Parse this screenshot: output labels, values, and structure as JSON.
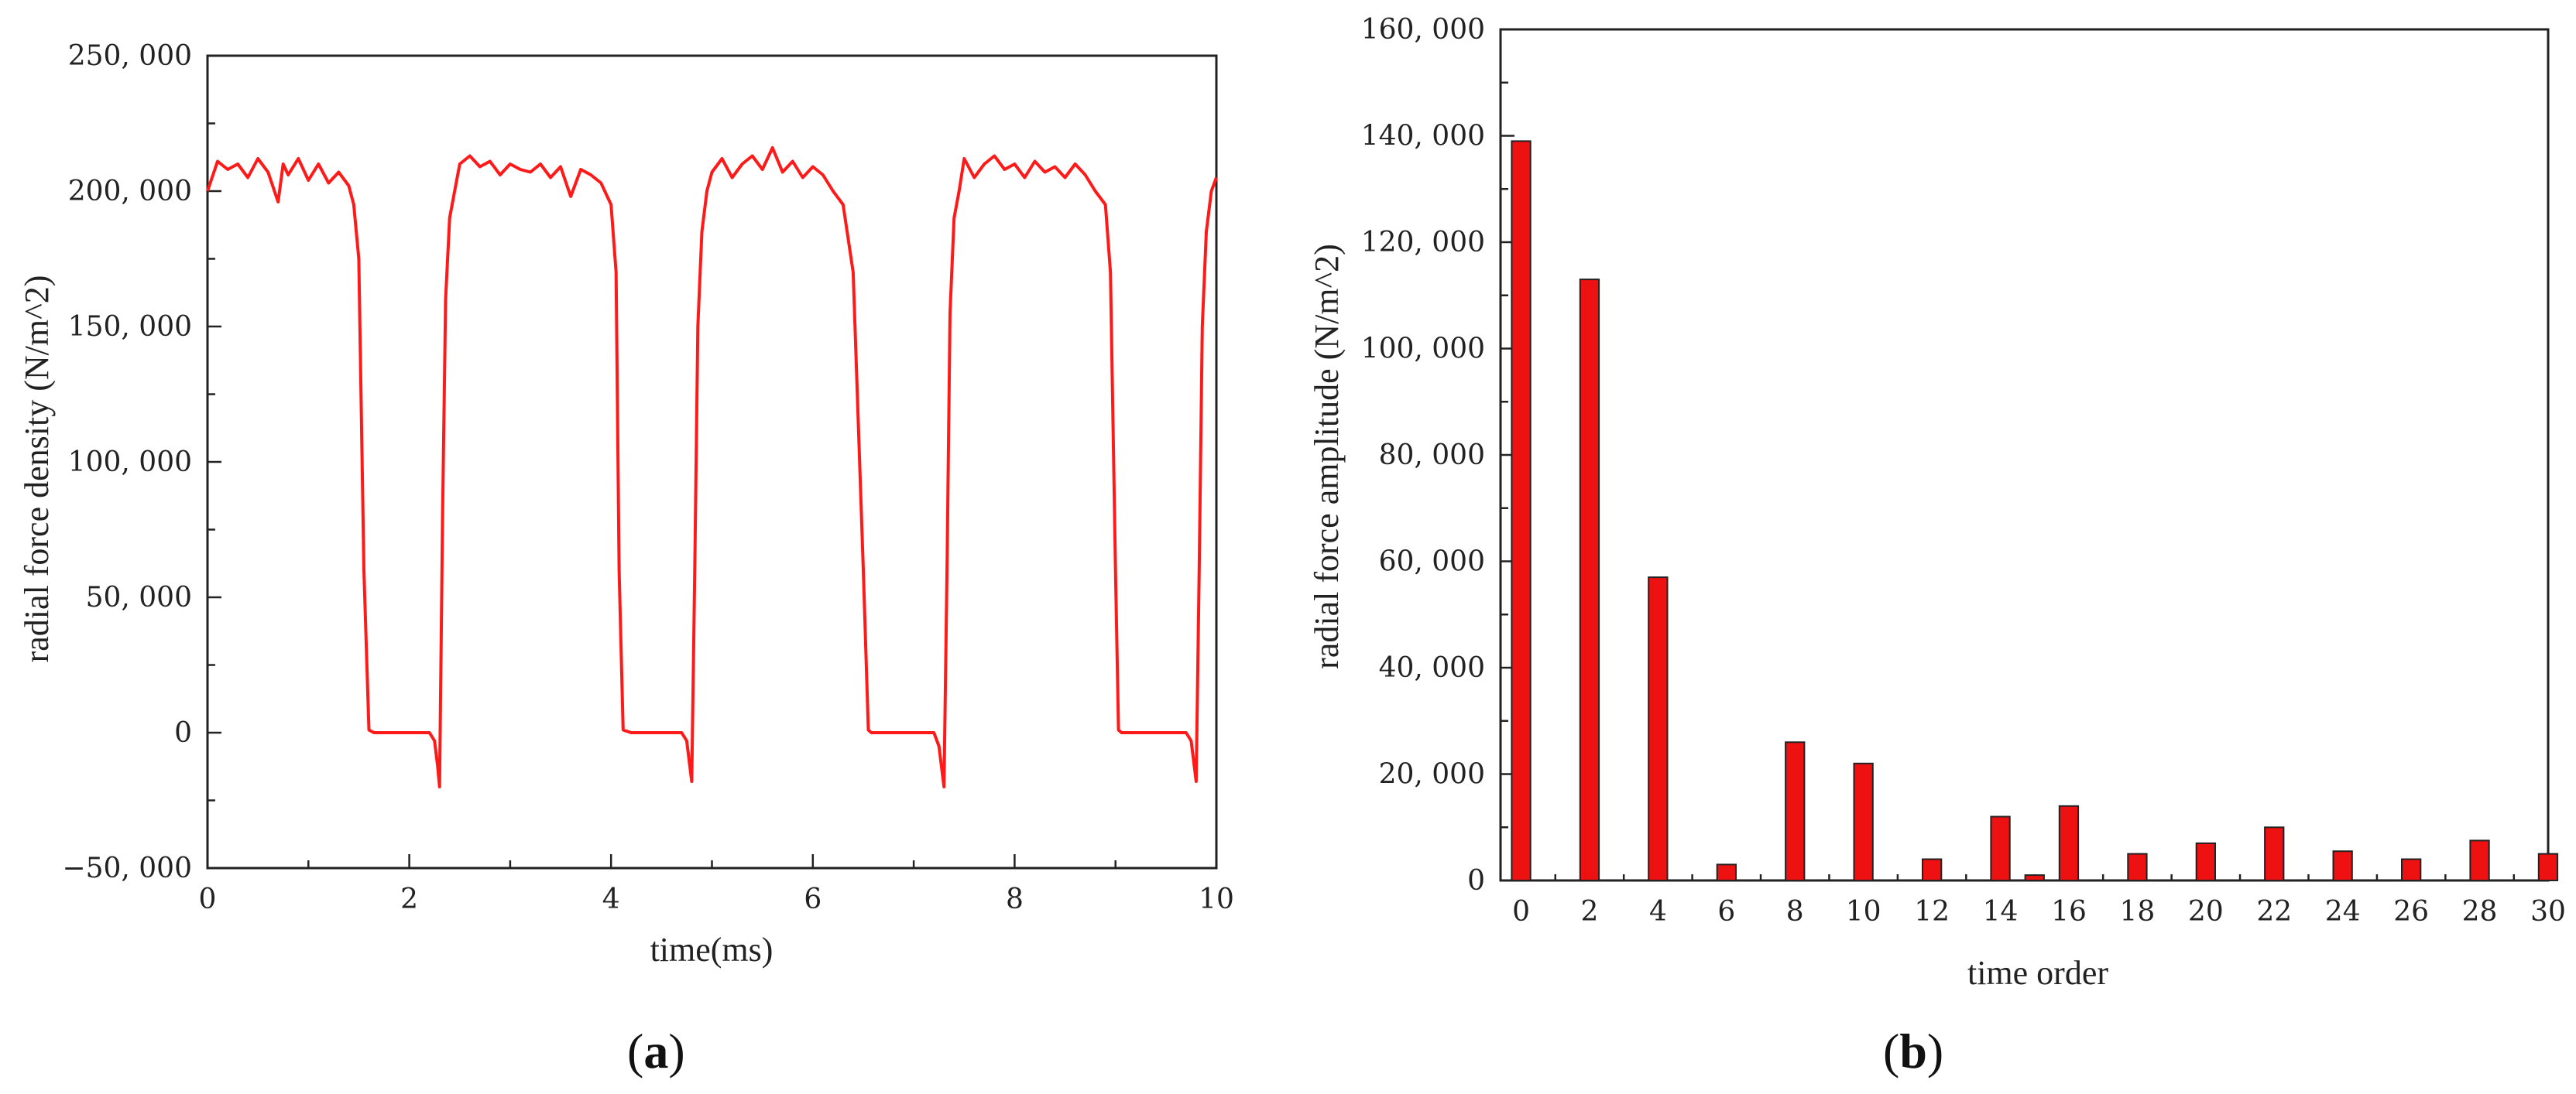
{
  "chart_data": [
    {
      "type": "line",
      "caption": "a",
      "xlabel": "time(ms)",
      "ylabel": "radial  force density  (N/m^2)",
      "xlim": [
        0,
        10
      ],
      "ylim": [
        -50000,
        250000
      ],
      "x_ticks": [
        "0",
        "2",
        "4",
        "6",
        "8",
        "10"
      ],
      "y_ticks": [
        "250, 000",
        "200, 000",
        "150, 000",
        "100, 000",
        "50, 000",
        "0",
        "−50, 000"
      ],
      "series": [
        {
          "color": "#ff1a1a",
          "x": [
            0,
            0.1,
            0.2,
            0.3,
            0.4,
            0.5,
            0.6,
            0.7,
            0.75,
            0.8,
            0.9,
            1.0,
            1.1,
            1.2,
            1.3,
            1.4,
            1.45,
            1.5,
            1.55,
            1.6,
            1.65,
            1.7,
            2.0,
            2.2,
            2.25,
            2.28,
            2.3,
            2.33,
            2.36,
            2.4,
            2.45,
            2.5,
            2.6,
            2.7,
            2.8,
            2.9,
            3.0,
            3.1,
            3.2,
            3.3,
            3.4,
            3.5,
            3.6,
            3.7,
            3.8,
            3.9,
            4.0,
            4.05,
            4.08,
            4.12,
            4.2,
            4.5,
            4.7,
            4.75,
            4.8,
            4.83,
            4.86,
            4.9,
            4.95,
            5.0,
            5.1,
            5.2,
            5.3,
            5.4,
            5.5,
            5.6,
            5.7,
            5.8,
            5.9,
            6.0,
            6.1,
            6.2,
            6.3,
            6.4,
            6.5,
            6.55,
            6.58,
            6.62,
            6.7,
            7.0,
            7.2,
            7.25,
            7.3,
            7.33,
            7.36,
            7.4,
            7.45,
            7.5,
            7.6,
            7.7,
            7.8,
            7.9,
            8.0,
            8.1,
            8.2,
            8.3,
            8.4,
            8.5,
            8.6,
            8.7,
            8.8,
            8.9,
            8.95,
            9.0,
            9.03,
            9.06,
            9.12,
            9.2,
            9.5,
            9.7,
            9.75,
            9.8,
            9.83,
            9.86,
            9.9,
            9.95,
            10.0
          ],
          "y": [
            200000,
            211000,
            208000,
            210000,
            205000,
            212000,
            207000,
            196000,
            210000,
            206000,
            212000,
            204000,
            210000,
            203000,
            207000,
            202000,
            195000,
            175000,
            60000,
            1000,
            0,
            0,
            0,
            0,
            -3000,
            -12000,
            -20000,
            80000,
            160000,
            190000,
            200000,
            210000,
            213000,
            209000,
            211000,
            206000,
            210000,
            208000,
            207000,
            210000,
            205000,
            209000,
            198000,
            208000,
            206000,
            203000,
            195000,
            170000,
            60000,
            1000,
            0,
            0,
            0,
            -3000,
            -18000,
            60000,
            150000,
            185000,
            200000,
            207000,
            212000,
            205000,
            210000,
            213000,
            208000,
            216000,
            207000,
            211000,
            205000,
            209000,
            206000,
            200000,
            195000,
            170000,
            60000,
            1000,
            0,
            0,
            0,
            0,
            0,
            -5000,
            -20000,
            60000,
            155000,
            190000,
            200000,
            212000,
            205000,
            210000,
            213000,
            208000,
            210000,
            205000,
            211000,
            207000,
            209000,
            205000,
            210000,
            206000,
            200000,
            195000,
            170000,
            60000,
            1000,
            0,
            0,
            0,
            0,
            0,
            -3000,
            -18000,
            60000,
            150000,
            185000,
            200000,
            205000
          ]
        }
      ]
    },
    {
      "type": "bar",
      "caption": "b",
      "xlabel": "time order",
      "ylabel": "radial  force amplitude  (N/m^2)",
      "xlim": [
        -0.6,
        30
      ],
      "ylim": [
        0,
        160000
      ],
      "x_ticks": [
        "0",
        "2",
        "4",
        "6",
        "8",
        "10",
        "12",
        "14",
        "16",
        "18",
        "20",
        "22",
        "24",
        "26",
        "28",
        "30"
      ],
      "y_ticks": [
        "160, 000",
        "140, 000",
        "120, 000",
        "100, 000",
        "80, 000",
        "60, 000",
        "40, 000",
        "20, 000",
        "0"
      ],
      "categories": [
        0,
        2,
        4,
        6,
        8,
        10,
        12,
        14,
        15,
        16,
        18,
        20,
        22,
        24,
        26,
        28,
        30
      ],
      "values": [
        139000,
        113000,
        57000,
        3000,
        26000,
        22000,
        4000,
        12000,
        1000,
        14000,
        5000,
        7000,
        10000,
        5500,
        4000,
        7500,
        5000
      ]
    }
  ]
}
